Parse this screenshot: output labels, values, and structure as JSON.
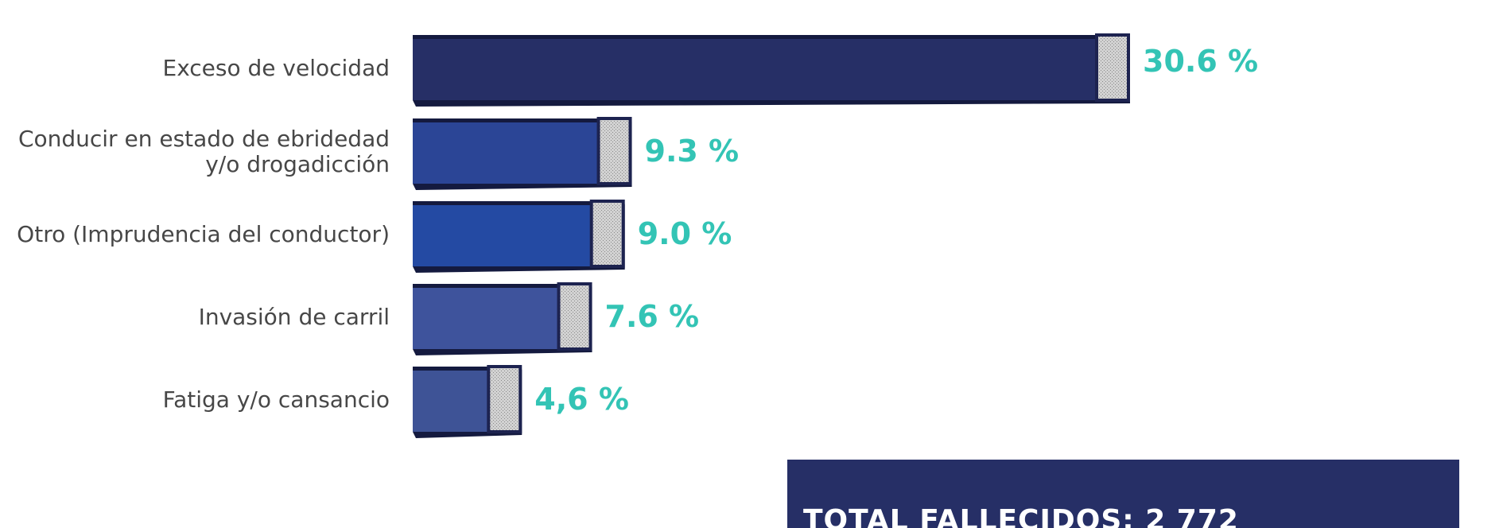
{
  "chart_data": {
    "type": "bar",
    "orientation": "horizontal",
    "categories": [
      [
        "Exceso de velocidad"
      ],
      [
        "Conducir en estado de ebridedad",
        "y/o drogadicción"
      ],
      [
        "Otro (Imprudencia del conductor)"
      ],
      [
        "Invasión de carril"
      ],
      [
        "Fatiga y/o cansancio"
      ]
    ],
    "values": [
      30.6,
      9.3,
      9.0,
      7.6,
      4.6
    ],
    "value_labels": [
      "30.6 %",
      "9.3 %",
      "9.0 %",
      "7.6 %",
      "4,6 %"
    ],
    "bar_colors": [
      "#262f66",
      "#2b4596",
      "#244aa3",
      "#3e539c",
      "#3e5396"
    ],
    "label_color": "#33c4b5",
    "total_label": "TOTAL FALLECIDOS: 2 772",
    "total_box_color": "#262f66",
    "grid": false,
    "legend": "none"
  }
}
